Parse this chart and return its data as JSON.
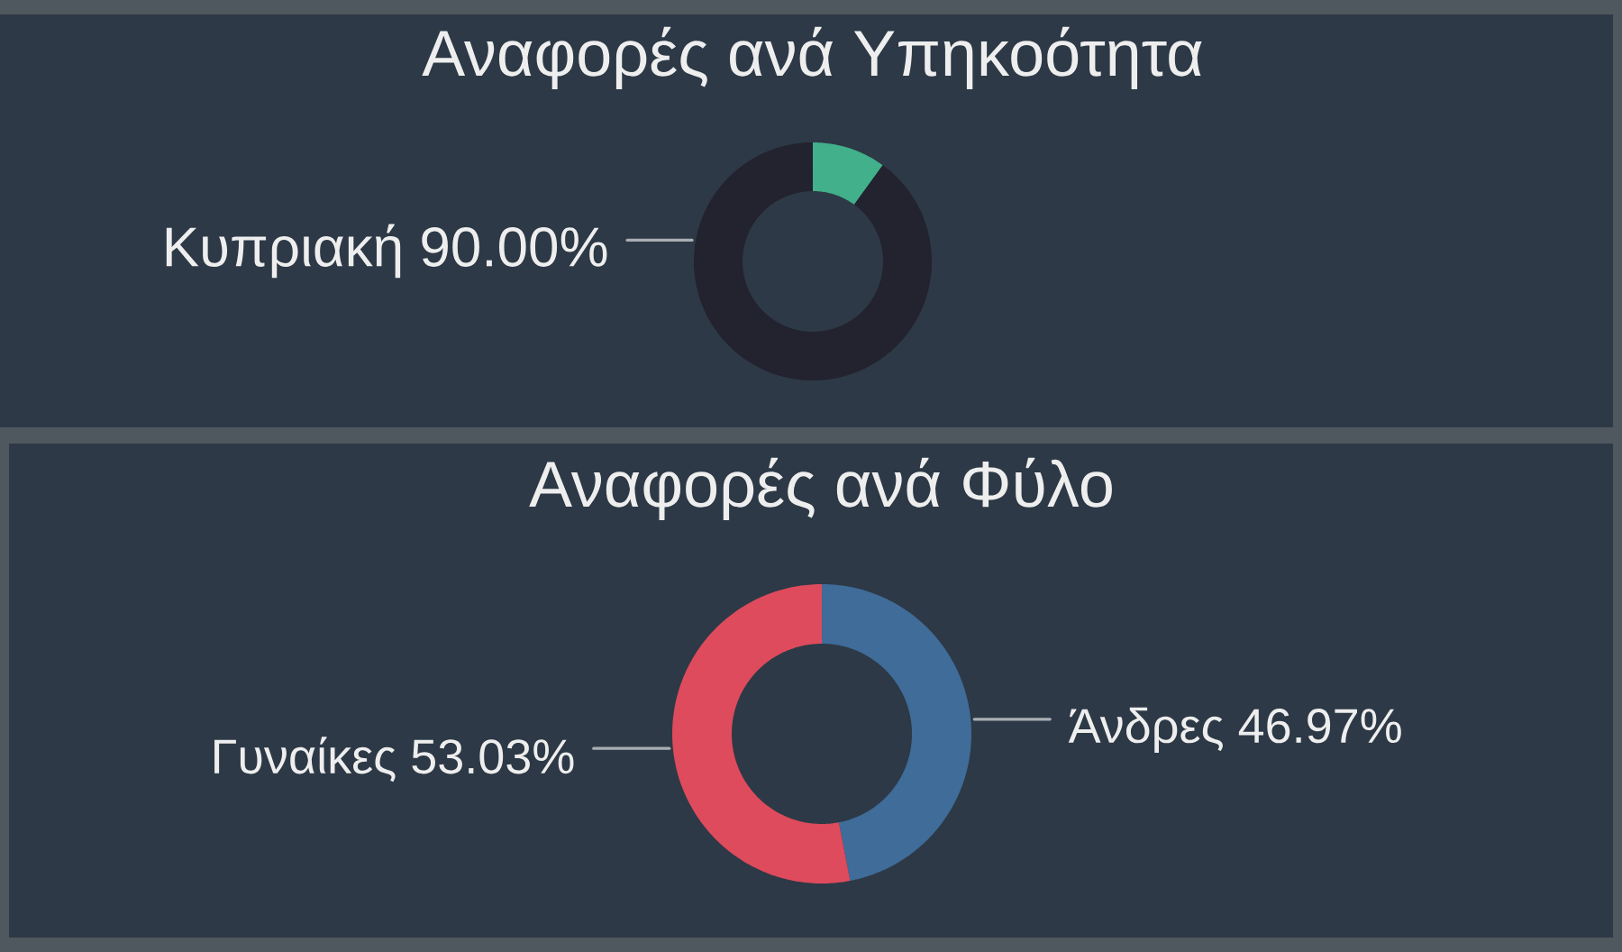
{
  "chart_data": [
    {
      "type": "donut",
      "title": "Αναφορές ανά Υπηκοότητα",
      "categories": [
        null,
        "Κυπριακή"
      ],
      "values": [
        10,
        90
      ],
      "colors": [
        "#41b08b",
        "#23222f"
      ],
      "value_labels": [
        null,
        "90.00%"
      ]
    },
    {
      "type": "donut",
      "title": "Αναφορές ανά Φύλο",
      "categories": [
        "Άνδρες",
        "Γυναίκες"
      ],
      "values": [
        46.97,
        53.03
      ],
      "colors": [
        "#3f6c99",
        "#de4b5c"
      ],
      "value_labels": [
        "46.97%",
        "53.03%"
      ]
    }
  ]
}
